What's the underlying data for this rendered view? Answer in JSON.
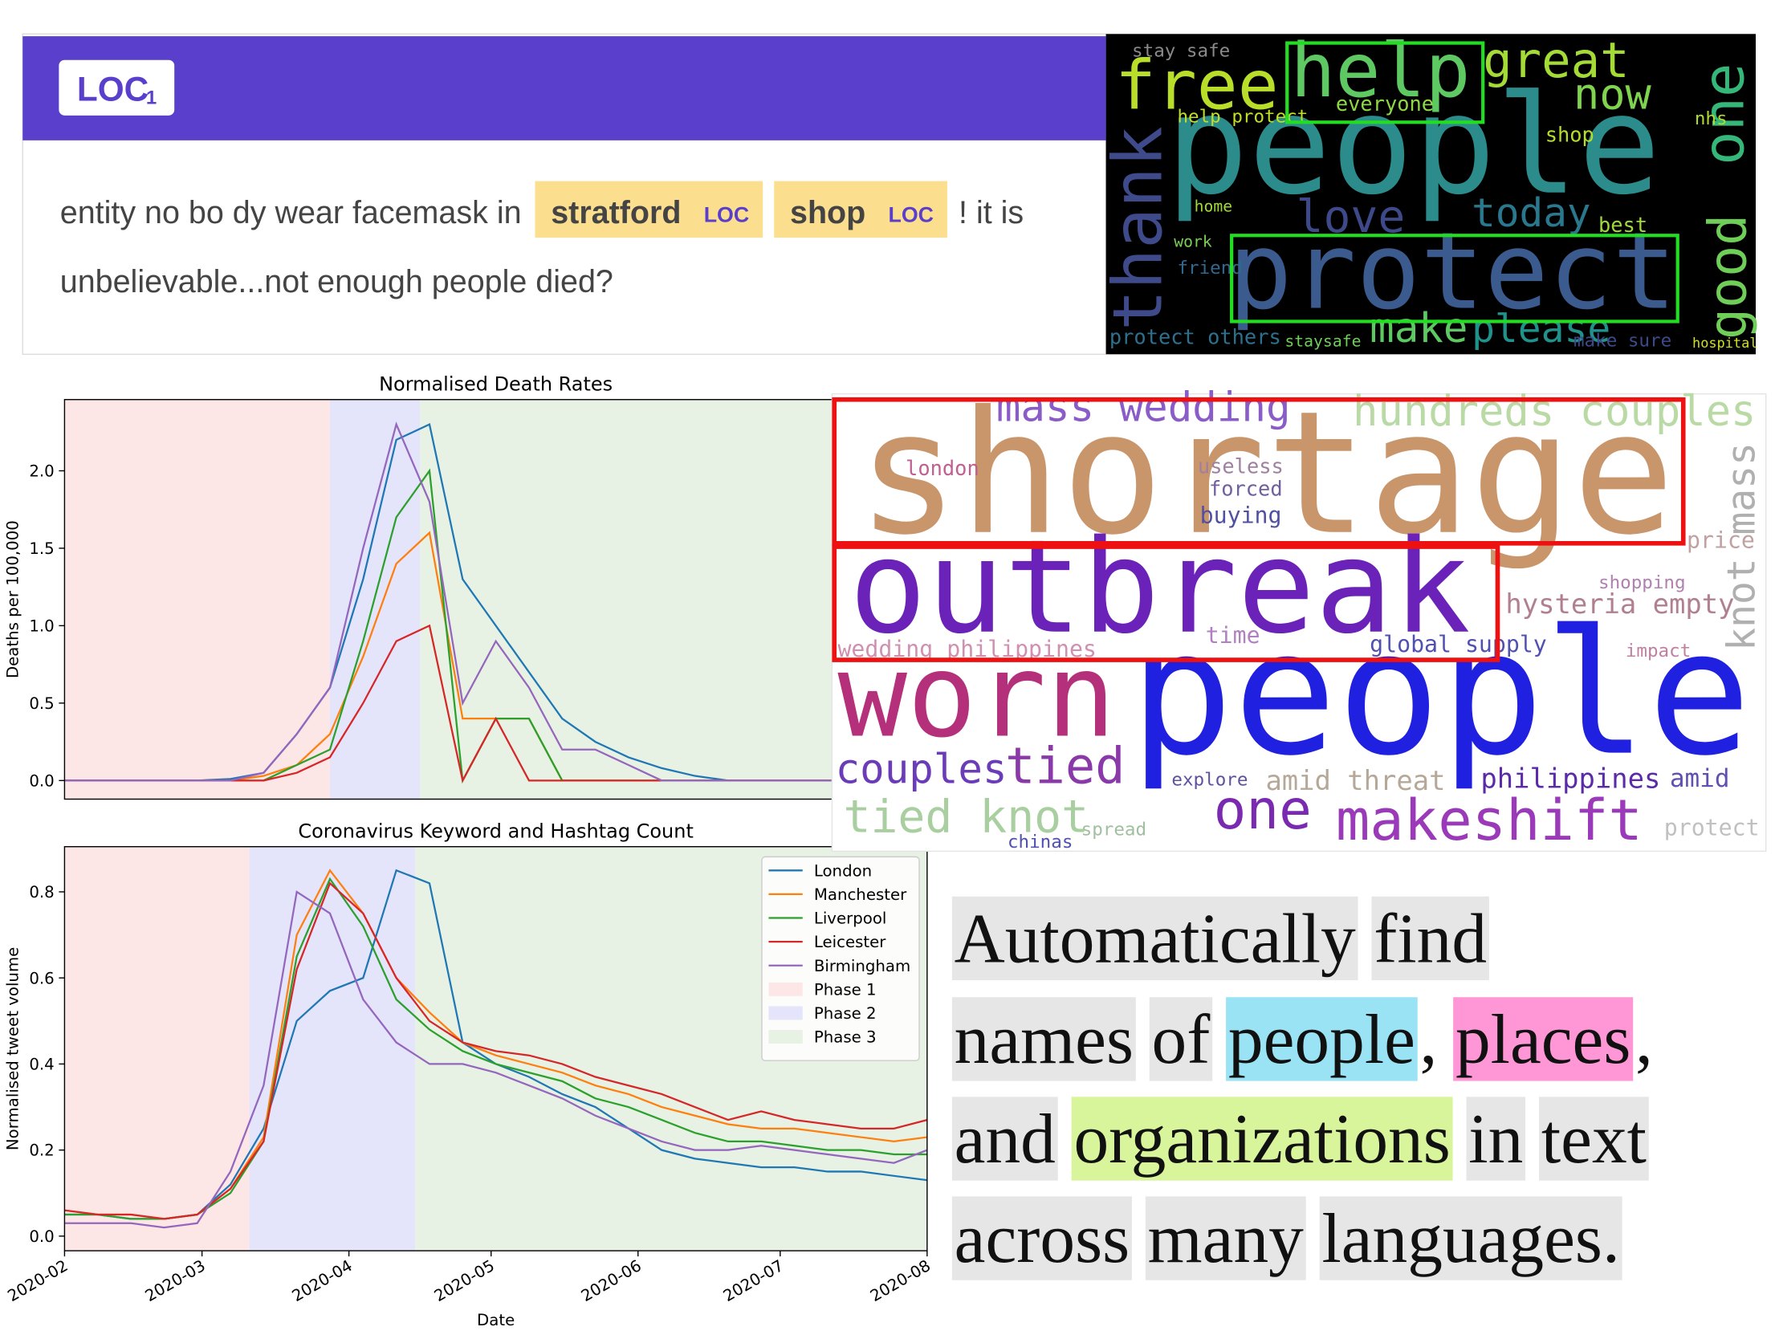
{
  "ner_card": {
    "badge": "LOC",
    "badge_count": "1",
    "header_color": "#5a3fcc",
    "highlight_color": "#fcdf8e",
    "label_color": "#5a3fcc",
    "lines": [
      [
        {
          "text": "entity no bo dy wear facemask in"
        },
        {
          "text": "stratford",
          "label": "LOC"
        },
        {
          "text": "shop",
          "label": "LOC"
        },
        {
          "text": "! it is"
        }
      ],
      [
        {
          "text": "unbelievable...not enough people died?"
        }
      ]
    ]
  },
  "wordcloud_dark": {
    "words": [
      {
        "text": "people",
        "color": "#2c8c8b"
      },
      {
        "text": "protect",
        "color": "#3b5a8e"
      },
      {
        "text": "free",
        "color": "#b8de29"
      },
      {
        "text": "help",
        "color": "#5ec962"
      },
      {
        "text": "great",
        "color": "#a5db36"
      },
      {
        "text": "now",
        "color": "#7fd34e"
      },
      {
        "text": "thank",
        "color": "#3e4a89"
      },
      {
        "text": "good",
        "color": "#6ece58"
      },
      {
        "text": "one",
        "color": "#35b779"
      },
      {
        "text": "love",
        "color": "#3e4989"
      },
      {
        "text": "today",
        "color": "#2a788e"
      },
      {
        "text": "make",
        "color": "#5ec962"
      },
      {
        "text": "please",
        "color": "#21918c"
      },
      {
        "text": "stay safe",
        "color": "#8a8a8a"
      },
      {
        "text": "everyone",
        "color": "#8fd744"
      },
      {
        "text": "shop",
        "color": "#b5de2b"
      },
      {
        "text": "best",
        "color": "#9fda3a"
      },
      {
        "text": "hospital",
        "color": "#cfe11c"
      },
      {
        "text": "protect others",
        "color": "#2d708e"
      },
      {
        "text": "staysafe",
        "color": "#6ece58"
      },
      {
        "text": "make sure",
        "color": "#3e4989"
      },
      {
        "text": "help protect",
        "color": "#c2df23"
      },
      {
        "text": "home",
        "color": "#a0da39"
      },
      {
        "text": "work",
        "color": "#7ad151"
      },
      {
        "text": "friend",
        "color": "#31688e"
      },
      {
        "text": "nhs",
        "color": "#addc30"
      }
    ]
  },
  "wordcloud_light": {
    "words": [
      {
        "text": "shortage",
        "color": "#c9956b"
      },
      {
        "text": "outbreak",
        "color": "#6a22b8"
      },
      {
        "text": "people",
        "color": "#2020e0"
      },
      {
        "text": "worn",
        "color": "#b5307a"
      },
      {
        "text": "mass wedding",
        "color": "#8a5cc8"
      },
      {
        "text": "hundreds couples",
        "color": "#b9d9a5"
      },
      {
        "text": "couples",
        "color": "#6a3cb8"
      },
      {
        "text": "tied",
        "color": "#8a3aa8"
      },
      {
        "text": "tied knot",
        "color": "#a9cfa0"
      },
      {
        "text": "one",
        "color": "#7a2ab0"
      },
      {
        "text": "makeshift",
        "color": "#9a3ab8"
      },
      {
        "text": "philippines",
        "color": "#5a2aa8"
      },
      {
        "text": "amid threat",
        "color": "#b5a898"
      },
      {
        "text": "hysteria empty",
        "color": "#b08090"
      },
      {
        "text": "knot mass",
        "color": "#b0b0b0"
      },
      {
        "text": "useless",
        "color": "#a080a0"
      },
      {
        "text": "forced",
        "color": "#7060a0"
      },
      {
        "text": "buying",
        "color": "#5050a0"
      },
      {
        "text": "london",
        "color": "#c06090"
      },
      {
        "text": "wedding philippines",
        "color": "#d090b0"
      },
      {
        "text": "global supply",
        "color": "#5050b0"
      },
      {
        "text": "time",
        "color": "#b080c0"
      },
      {
        "text": "price",
        "color": "#c0a0a0"
      },
      {
        "text": "amid",
        "color": "#6050b0"
      },
      {
        "text": "protect",
        "color": "#c0c0c0"
      },
      {
        "text": "explore",
        "color": "#6050a0"
      },
      {
        "text": "chinas",
        "color": "#5050b0"
      },
      {
        "text": "spread",
        "color": "#a0c0a0"
      },
      {
        "text": "shopping",
        "color": "#b080b0"
      },
      {
        "text": "impact",
        "color": "#c080a0"
      }
    ]
  },
  "tagline": {
    "box_color": "#e6e6e6",
    "lines": [
      [
        {
          "text": "Automatically"
        },
        {
          "text": "find"
        }
      ],
      [
        {
          "text": "names"
        },
        {
          "text": "of"
        },
        {
          "text": "people",
          "color": "#9ae3f5"
        },
        {
          "text": ",",
          "boxed": false
        },
        {
          "text": "places",
          "color": "#ff96d6"
        },
        {
          "text": ",",
          "boxed": false
        }
      ],
      [
        {
          "text": "and"
        },
        {
          "text": "organizations",
          "color": "#d9f59c"
        },
        {
          "text": "in"
        },
        {
          "text": "text"
        }
      ],
      [
        {
          "text": "across"
        },
        {
          "text": "many"
        },
        {
          "text": "languages."
        }
      ]
    ]
  },
  "chart_data": [
    {
      "type": "line",
      "title": "Normalised Death Rates",
      "ylabel": "Deaths per 100,000",
      "x": [
        0,
        7,
        14,
        21,
        28,
        35,
        42,
        49,
        56,
        63,
        70,
        77,
        84,
        91,
        98,
        105,
        112,
        119,
        126,
        133,
        140,
        147,
        154,
        161,
        168,
        175,
        182
      ],
      "xlim": [
        0,
        182
      ],
      "ylim": [
        -0.12,
        2.46
      ],
      "yticks": [
        {
          "value": 0,
          "label": "0.0"
        },
        {
          "value": 0.5,
          "label": "0.5"
        },
        {
          "value": 1,
          "label": "1.0"
        },
        {
          "value": 1.5,
          "label": "1.5"
        },
        {
          "value": 2,
          "label": "2.0"
        }
      ],
      "phases": [
        {
          "span": [
            0,
            56
          ],
          "color": "#fde6e6"
        },
        {
          "span": [
            56,
            75
          ],
          "color": "#e4e4fb"
        },
        {
          "span": [
            75,
            182
          ],
          "color": "#e7f1e4"
        }
      ],
      "series": [
        {
          "name": "London",
          "color": "#1f77b4",
          "values": [
            0,
            0,
            0,
            0,
            0,
            0.01,
            0.05,
            0.3,
            0.6,
            1.3,
            2.2,
            2.3,
            1.3,
            1.0,
            0.7,
            0.4,
            0.25,
            0.15,
            0.08,
            0.03,
            0,
            0,
            0,
            0,
            0,
            0,
            0
          ]
        },
        {
          "name": "Manchester",
          "color": "#ff7f0e",
          "values": [
            0,
            0,
            0,
            0,
            0,
            0,
            0.03,
            0.1,
            0.3,
            0.8,
            1.4,
            1.6,
            0.4,
            0.4,
            0.4,
            0,
            0,
            0,
            0,
            0,
            0,
            0,
            0,
            0,
            0,
            0,
            0
          ]
        },
        {
          "name": "Liverpool",
          "color": "#2ca02c",
          "values": [
            0,
            0,
            0,
            0,
            0,
            0,
            0,
            0.1,
            0.2,
            0.9,
            1.7,
            2.0,
            0,
            0.4,
            0.4,
            0,
            0,
            0,
            0,
            0,
            0,
            0,
            0,
            0,
            0,
            0,
            0
          ]
        },
        {
          "name": "Leicester",
          "color": "#d62728",
          "values": [
            0,
            0,
            0,
            0,
            0,
            0,
            0,
            0.05,
            0.15,
            0.5,
            0.9,
            1.0,
            0,
            0.4,
            0,
            0,
            0,
            0,
            0,
            0,
            0,
            0,
            0,
            0,
            0,
            0,
            0
          ]
        },
        {
          "name": "Birmingham",
          "color": "#9467bd",
          "values": [
            0,
            0,
            0,
            0,
            0,
            0,
            0.05,
            0.3,
            0.6,
            1.5,
            2.3,
            1.8,
            0.5,
            0.9,
            0.6,
            0.2,
            0.2,
            0.1,
            0,
            0,
            0,
            0,
            0,
            0,
            0,
            0,
            0
          ]
        }
      ]
    },
    {
      "type": "line",
      "title": "Coronavirus Keyword and Hashtag Count",
      "ylabel": "Normalised tweet volume",
      "xlabel": "Date",
      "x": [
        0,
        7,
        14,
        21,
        28,
        35,
        42,
        49,
        56,
        63,
        70,
        77,
        84,
        91,
        98,
        105,
        112,
        119,
        126,
        133,
        140,
        147,
        154,
        161,
        168,
        175,
        182
      ],
      "xlim": [
        0,
        182
      ],
      "ylim": [
        -0.034,
        0.905
      ],
      "xticks": [
        {
          "value": 0,
          "label": "2020-02"
        },
        {
          "value": 29,
          "label": "2020-03"
        },
        {
          "value": 60,
          "label": "2020-04"
        },
        {
          "value": 90,
          "label": "2020-05"
        },
        {
          "value": 121,
          "label": "2020-06"
        },
        {
          "value": 151,
          "label": "2020-07"
        },
        {
          "value": 182,
          "label": "2020-08"
        }
      ],
      "yticks": [
        {
          "value": 0,
          "label": "0.0"
        },
        {
          "value": 0.2,
          "label": "0.2"
        },
        {
          "value": 0.4,
          "label": "0.4"
        },
        {
          "value": 0.6,
          "label": "0.6"
        },
        {
          "value": 0.8,
          "label": "0.8"
        }
      ],
      "legend": "upper right",
      "phases": [
        {
          "name": "Phase 1",
          "span": [
            0,
            39
          ],
          "color": "#fde6e6"
        },
        {
          "name": "Phase 2",
          "span": [
            39,
            74
          ],
          "color": "#e4e4fb"
        },
        {
          "name": "Phase 3",
          "span": [
            74,
            182
          ],
          "color": "#e7f1e4"
        }
      ],
      "series": [
        {
          "name": "London",
          "color": "#1f77b4",
          "values": [
            0.05,
            0.05,
            0.04,
            0.04,
            0.05,
            0.12,
            0.25,
            0.5,
            0.57,
            0.6,
            0.85,
            0.82,
            0.45,
            0.4,
            0.37,
            0.33,
            0.3,
            0.25,
            0.2,
            0.18,
            0.17,
            0.16,
            0.16,
            0.15,
            0.15,
            0.14,
            0.13
          ]
        },
        {
          "name": "Manchester",
          "color": "#ff7f0e",
          "values": [
            0.06,
            0.05,
            0.05,
            0.04,
            0.05,
            0.11,
            0.23,
            0.7,
            0.85,
            0.75,
            0.6,
            0.52,
            0.45,
            0.42,
            0.4,
            0.38,
            0.35,
            0.33,
            0.3,
            0.28,
            0.26,
            0.25,
            0.25,
            0.24,
            0.23,
            0.22,
            0.23
          ]
        },
        {
          "name": "Liverpool",
          "color": "#2ca02c",
          "values": [
            0.05,
            0.05,
            0.04,
            0.04,
            0.05,
            0.1,
            0.22,
            0.65,
            0.83,
            0.72,
            0.55,
            0.48,
            0.43,
            0.4,
            0.38,
            0.36,
            0.32,
            0.3,
            0.27,
            0.24,
            0.22,
            0.22,
            0.21,
            0.2,
            0.2,
            0.19,
            0.19
          ]
        },
        {
          "name": "Leicester",
          "color": "#d62728",
          "values": [
            0.06,
            0.05,
            0.05,
            0.04,
            0.05,
            0.11,
            0.22,
            0.62,
            0.82,
            0.75,
            0.6,
            0.5,
            0.45,
            0.43,
            0.42,
            0.4,
            0.37,
            0.35,
            0.33,
            0.3,
            0.27,
            0.29,
            0.27,
            0.26,
            0.25,
            0.25,
            0.27
          ]
        },
        {
          "name": "Birmingham",
          "color": "#9467bd",
          "values": [
            0.03,
            0.03,
            0.03,
            0.02,
            0.03,
            0.15,
            0.35,
            0.8,
            0.75,
            0.55,
            0.45,
            0.4,
            0.4,
            0.38,
            0.35,
            0.32,
            0.28,
            0.25,
            0.22,
            0.2,
            0.2,
            0.21,
            0.2,
            0.19,
            0.18,
            0.17,
            0.2
          ]
        }
      ]
    }
  ]
}
